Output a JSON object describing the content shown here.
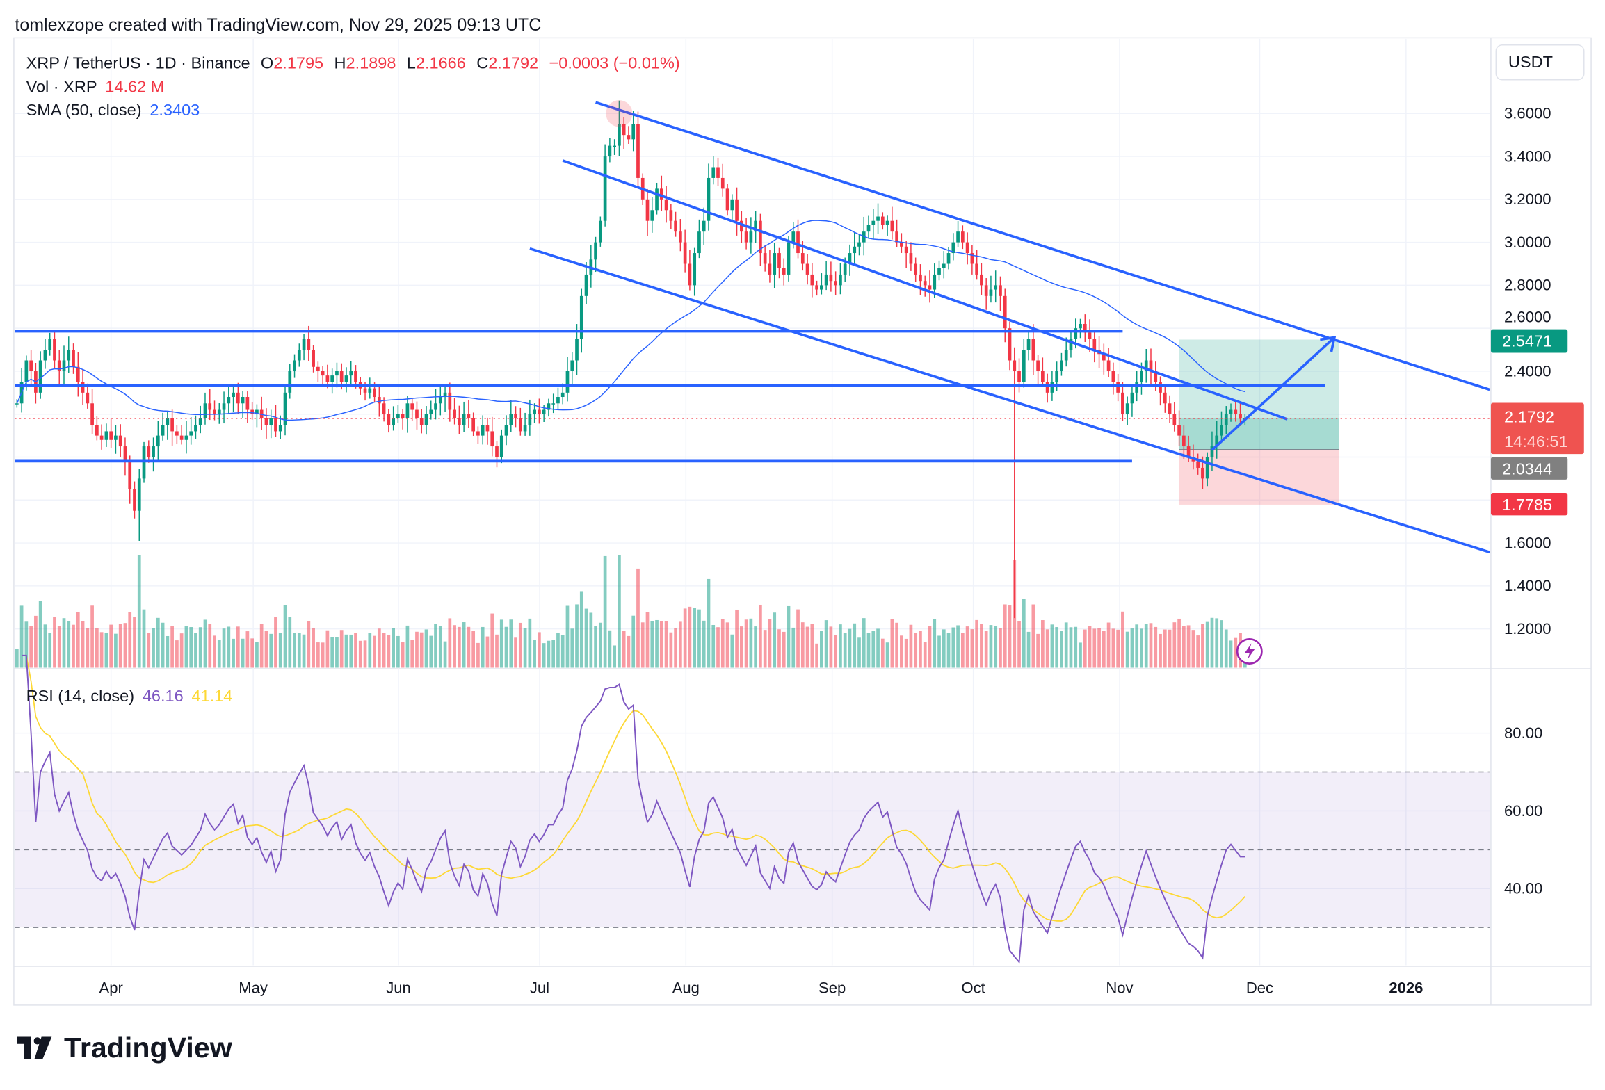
{
  "header": {
    "credit": "tomlexzope created with TradingView.com, Nov 29, 2025 09:13 UTC"
  },
  "legend": {
    "symbol": "XRP / TetherUS · 1D · Binance",
    "o_label": "O",
    "o": "2.1795",
    "h_label": "H",
    "h": "2.1898",
    "l_label": "L",
    "l": "2.1666",
    "c_label": "C",
    "c": "2.1792",
    "change": "−0.0003 (−0.01%)",
    "vol_label": "Vol · XRP",
    "vol": "14.62 M",
    "sma_label": "SMA (50, close)",
    "sma": "2.3403",
    "rsi_label": "RSI (14, close)",
    "rsi": "46.16",
    "rsi_ma": "41.14"
  },
  "price_axis": {
    "currency": "USDT",
    "ticks": [
      "3.6000",
      "3.4000",
      "3.2000",
      "3.0000",
      "2.8000",
      "2.6000",
      "2.4000",
      "1.6000",
      "1.4000",
      "1.2000"
    ],
    "badges": {
      "target": "2.5471",
      "last": "2.1792",
      "countdown": "14:46:51",
      "entry": "2.0344",
      "stop": "1.7785"
    }
  },
  "rsi_axis": {
    "ticks": [
      "80.00",
      "60.00",
      "40.00"
    ]
  },
  "time_axis": {
    "ticks": [
      "Apr",
      "May",
      "Jun",
      "Jul",
      "Aug",
      "Sep",
      "Oct",
      "Nov",
      "Dec",
      "2026"
    ]
  },
  "brand": {
    "logo_text": "TradingView"
  },
  "colors": {
    "up": "#089981",
    "down": "#f23645",
    "sma": "#2962ff",
    "rsi": "#7e57c2",
    "rsi_ma": "#fdd835",
    "drawing": "#2962ff"
  },
  "chart_data": {
    "type": "candlestick",
    "start_date": "2025-03-12",
    "interval": "1D",
    "close": [
      2.25,
      2.35,
      2.45,
      2.4,
      2.3,
      2.45,
      2.5,
      2.55,
      2.45,
      2.4,
      2.45,
      2.5,
      2.42,
      2.35,
      2.3,
      2.25,
      2.15,
      2.1,
      2.08,
      2.12,
      2.08,
      2.1,
      2.05,
      1.98,
      1.85,
      1.75,
      1.9,
      2.05,
      2.0,
      2.05,
      2.1,
      2.15,
      2.18,
      2.12,
      2.1,
      2.08,
      2.1,
      2.12,
      2.15,
      2.18,
      2.25,
      2.22,
      2.2,
      2.22,
      2.25,
      2.28,
      2.3,
      2.25,
      2.28,
      2.22,
      2.2,
      2.22,
      2.18,
      2.15,
      2.18,
      2.12,
      2.15,
      2.3,
      2.4,
      2.45,
      2.5,
      2.55,
      2.5,
      2.42,
      2.4,
      2.38,
      2.35,
      2.38,
      2.4,
      2.35,
      2.38,
      2.4,
      2.35,
      2.32,
      2.3,
      2.32,
      2.28,
      2.25,
      2.2,
      2.15,
      2.18,
      2.2,
      2.18,
      2.25,
      2.22,
      2.18,
      2.15,
      2.2,
      2.22,
      2.25,
      2.28,
      2.3,
      2.22,
      2.18,
      2.15,
      2.2,
      2.18,
      2.12,
      2.1,
      2.15,
      2.12,
      2.05,
      2.0,
      2.1,
      2.15,
      2.2,
      2.18,
      2.12,
      2.15,
      2.2,
      2.22,
      2.2,
      2.22,
      2.25,
      2.25,
      2.28,
      2.3,
      2.4,
      2.45,
      2.55,
      2.75,
      2.85,
      2.92,
      3.0,
      3.1,
      3.4,
      3.45,
      3.45,
      3.55,
      3.5,
      3.48,
      3.55,
      3.3,
      3.2,
      3.1,
      3.15,
      3.25,
      3.2,
      3.15,
      3.1,
      3.05,
      3.0,
      2.9,
      2.8,
      2.95,
      3.05,
      3.1,
      3.3,
      3.35,
      3.3,
      3.25,
      3.15,
      3.2,
      3.1,
      3.05,
      3.0,
      3.05,
      3.1,
      2.95,
      2.9,
      2.85,
      2.95,
      2.88,
      2.85,
      3.0,
      3.05,
      2.95,
      2.9,
      2.85,
      2.8,
      2.78,
      2.8,
      2.85,
      2.82,
      2.8,
      2.85,
      2.9,
      2.95,
      2.98,
      3.0,
      3.05,
      3.08,
      3.1,
      3.12,
      3.08,
      3.1,
      3.05,
      3.0,
      2.98,
      2.95,
      2.9,
      2.85,
      2.82,
      2.8,
      2.78,
      2.85,
      2.88,
      2.9,
      2.95,
      3.0,
      3.05,
      3.0,
      2.95,
      2.9,
      2.85,
      2.8,
      2.75,
      2.78,
      2.8,
      2.75,
      2.6,
      2.45,
      2.4,
      2.35,
      2.5,
      2.55,
      2.45,
      2.4,
      2.35,
      2.3,
      2.35,
      2.4,
      2.45,
      2.5,
      2.55,
      2.6,
      2.62,
      2.58,
      2.55,
      2.5,
      2.48,
      2.45,
      2.4,
      2.35,
      2.3,
      2.2,
      2.25,
      2.3,
      2.35,
      2.4,
      2.45,
      2.4,
      2.35,
      2.3,
      2.25,
      2.2,
      2.15,
      2.1,
      2.05,
      2.0,
      1.98,
      1.95,
      1.9,
      2.0,
      2.05,
      2.1,
      2.15,
      2.2,
      2.22,
      2.2,
      2.18,
      2.18
    ],
    "notable_wicks": [
      {
        "date": "2025-04-07",
        "low": 1.61
      },
      {
        "date": "2025-07-18",
        "high": 3.66
      },
      {
        "date": "2025-10-10",
        "low": 1.25
      }
    ],
    "y_range": [
      1.1,
      3.75
    ],
    "indicators": [
      "Volume",
      "SMA (50, close)",
      "RSI (14, close)"
    ],
    "drawings": {
      "channel_lines": [
        {
          "from": [
            "2025-07-13",
            3.652
          ],
          "to": [
            "2026-01-19",
            2.314
          ]
        },
        {
          "from": [
            "2025-07-06",
            3.381
          ],
          "to": [
            "2025-12-07",
            2.176
          ]
        },
        {
          "from": [
            "2025-06-29",
            2.971
          ],
          "to": [
            "2026-01-19",
            1.557
          ]
        }
      ],
      "horizontal_lines": [
        {
          "price": 2.586,
          "from": "2025-03-12",
          "to": "2025-11-02"
        },
        {
          "price": 2.333,
          "from": "2025-03-12",
          "to": "2025-12-15"
        },
        {
          "price": 1.981,
          "from": "2025-03-12",
          "to": "2025-11-04"
        }
      ],
      "arrow": {
        "from": [
          "2025-11-21",
          2.033
        ],
        "to": [
          "2025-12-17",
          2.557
        ]
      },
      "long_position": {
        "from": "2025-11-14",
        "to": "2025-12-18",
        "target": 2.5471,
        "entry": 2.0344,
        "stop": 1.7785
      },
      "high_marker": {
        "date": "2025-07-18",
        "price": 3.6
      }
    },
    "rsi_levels": [
      70,
      50,
      30
    ]
  }
}
